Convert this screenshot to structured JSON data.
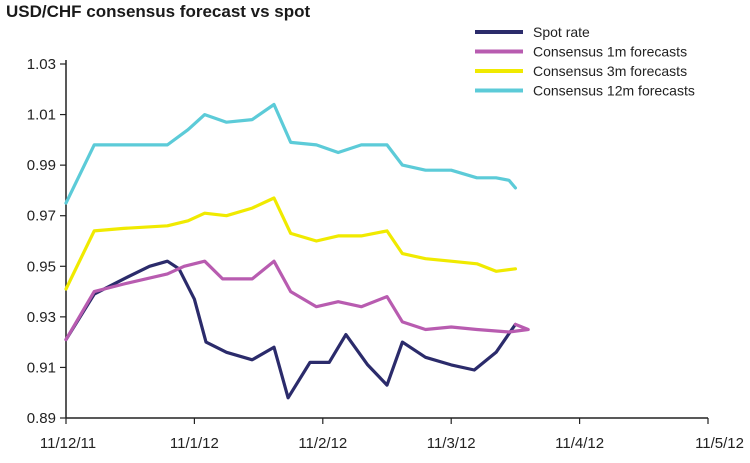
{
  "chart_data": {
    "type": "line",
    "title": "USD/CHF consensus forecast vs spot",
    "xlabel": "",
    "ylabel": "",
    "x_ticks": [
      "11/12/11",
      "11/1/12",
      "11/2/12",
      "11/3/12",
      "11/4/12",
      "11/5/12"
    ],
    "x_range": [
      0,
      5
    ],
    "ylim": [
      0.89,
      1.03
    ],
    "y_ticks": [
      0.89,
      0.91,
      0.93,
      0.95,
      0.97,
      0.99,
      1.01,
      1.03
    ],
    "y_tick_labels": [
      "0.89",
      "0.91",
      "0.93",
      "0.95",
      "0.97",
      "0.99",
      "1.01",
      "1.03"
    ],
    "grid": false,
    "legend": "top-right",
    "series": [
      {
        "name": "Spot rate",
        "color": "#2b2b6b",
        "points": [
          [
            0,
            0.921
          ],
          [
            0.22,
            0.939
          ],
          [
            0.45,
            0.945
          ],
          [
            0.65,
            0.95
          ],
          [
            0.79,
            0.952
          ],
          [
            0.88,
            0.949
          ],
          [
            1.0,
            0.937
          ],
          [
            1.09,
            0.92
          ],
          [
            1.25,
            0.916
          ],
          [
            1.45,
            0.913
          ],
          [
            1.62,
            0.918
          ],
          [
            1.73,
            0.898
          ],
          [
            1.9,
            0.912
          ],
          [
            2.05,
            0.912
          ],
          [
            2.18,
            0.923
          ],
          [
            2.35,
            0.911
          ],
          [
            2.5,
            0.903
          ],
          [
            2.62,
            0.92
          ],
          [
            2.8,
            0.914
          ],
          [
            3.0,
            0.911
          ],
          [
            3.18,
            0.909
          ],
          [
            3.35,
            0.916
          ],
          [
            3.5,
            0.927
          ]
        ]
      },
      {
        "name": "Consensus 1m forecasts",
        "color": "#b85cb0",
        "points": [
          [
            0,
            0.921
          ],
          [
            0.22,
            0.94
          ],
          [
            0.45,
            0.943
          ],
          [
            0.79,
            0.947
          ],
          [
            0.92,
            0.95
          ],
          [
            1.08,
            0.952
          ],
          [
            1.22,
            0.945
          ],
          [
            1.45,
            0.945
          ],
          [
            1.62,
            0.952
          ],
          [
            1.75,
            0.94
          ],
          [
            1.95,
            0.934
          ],
          [
            2.12,
            0.936
          ],
          [
            2.3,
            0.934
          ],
          [
            2.5,
            0.938
          ],
          [
            2.62,
            0.928
          ],
          [
            2.8,
            0.925
          ],
          [
            3.0,
            0.926
          ],
          [
            3.2,
            0.925
          ],
          [
            3.45,
            0.924
          ],
          [
            3.6,
            0.925
          ],
          [
            3.5,
            0.927
          ]
        ]
      },
      {
        "name": "Consensus 3m forecasts",
        "color": "#f0ea00",
        "points": [
          [
            0,
            0.941
          ],
          [
            0.22,
            0.964
          ],
          [
            0.45,
            0.965
          ],
          [
            0.79,
            0.966
          ],
          [
            0.95,
            0.968
          ],
          [
            1.08,
            0.971
          ],
          [
            1.25,
            0.97
          ],
          [
            1.45,
            0.973
          ],
          [
            1.62,
            0.977
          ],
          [
            1.75,
            0.963
          ],
          [
            1.95,
            0.96
          ],
          [
            2.12,
            0.962
          ],
          [
            2.3,
            0.962
          ],
          [
            2.5,
            0.964
          ],
          [
            2.62,
            0.955
          ],
          [
            2.8,
            0.953
          ],
          [
            3.0,
            0.952
          ],
          [
            3.2,
            0.951
          ],
          [
            3.35,
            0.948
          ],
          [
            3.5,
            0.949
          ]
        ]
      },
      {
        "name": "Consensus 12m forecasts",
        "color": "#5ccbd8",
        "points": [
          [
            0,
            0.975
          ],
          [
            0.22,
            0.998
          ],
          [
            0.45,
            0.998
          ],
          [
            0.79,
            0.998
          ],
          [
            0.95,
            1.004
          ],
          [
            1.08,
            1.01
          ],
          [
            1.25,
            1.007
          ],
          [
            1.45,
            1.008
          ],
          [
            1.62,
            1.014
          ],
          [
            1.75,
            0.999
          ],
          [
            1.95,
            0.998
          ],
          [
            2.12,
            0.995
          ],
          [
            2.3,
            0.998
          ],
          [
            2.5,
            0.998
          ],
          [
            2.62,
            0.99
          ],
          [
            2.8,
            0.988
          ],
          [
            3.0,
            0.988
          ],
          [
            3.2,
            0.985
          ],
          [
            3.35,
            0.985
          ],
          [
            3.45,
            0.984
          ],
          [
            3.5,
            0.981
          ]
        ]
      }
    ]
  }
}
